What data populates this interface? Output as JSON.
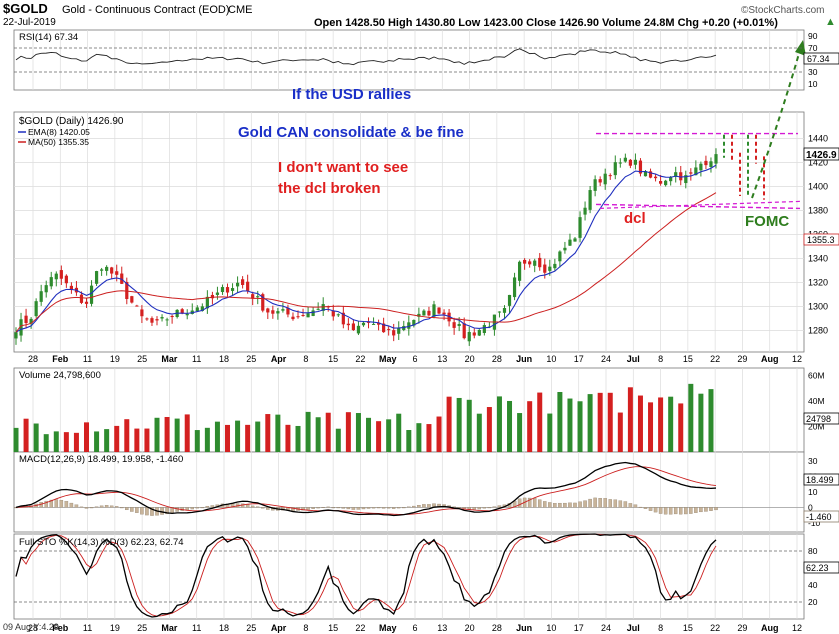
{
  "header": {
    "symbol": "$GOLD",
    "name": "Gold - Continuous Contract (EOD)",
    "exchange": "CME",
    "date": "22-Jul-2019",
    "logo": "©StockCharts.com",
    "quote": "Open 1428.50  High 1430.80  Low 1423.00  Close 1426.90  Volume 24.8M  Chg +0.20 (+0.01%)",
    "quote_arrow": "▲"
  },
  "annotations": {
    "usd": "If the USD rallies",
    "consolidate": "Gold CAN consolidate & be fine",
    "dont_want_1": "I don't want to see",
    "dont_want_2": "the dcl broken",
    "dcl": "dcl",
    "fomc": "FOMC"
  },
  "colors": {
    "up": "#2e8b2e",
    "down": "#d42020",
    "ema": "#1f2fbf",
    "ma": "#cc2020",
    "annot_blue": "#1a2fc8",
    "annot_red": "#e01f1f",
    "annot_green": "#2e7d1e",
    "magenta": "#d41ad4"
  },
  "chart_data": [
    {
      "type": "line",
      "panel": "RSI",
      "legend": "RSI(14) 67.34",
      "last_value_label": "67.34",
      "y_ticks": [
        "90",
        "70",
        "50",
        "30",
        "10"
      ],
      "ylim": [
        0,
        100
      ],
      "guides": [
        70,
        30
      ]
    },
    {
      "type": "candlestick",
      "panel": "Price",
      "legend_title": "$GOLD (Daily) 1426.90",
      "legend_ema": "EMA(8) 1420.05",
      "legend_ma": "MA(50) 1355.35",
      "last_value_label": "1426.9",
      "ma_value_label": "1355.3",
      "y_ticks": [
        "1440",
        "1420",
        "1400",
        "1380",
        "1360",
        "1340",
        "1320",
        "1300",
        "1280"
      ],
      "ylim": [
        1262,
        1462
      ],
      "resistance": 1444,
      "support": 1385,
      "x_ticks": [
        "28",
        "Feb",
        "11",
        "19",
        "25",
        "Mar",
        "11",
        "18",
        "25",
        "Apr",
        "8",
        "15",
        "22",
        "May",
        "6",
        "13",
        "20",
        "28",
        "Jun",
        "10",
        "17",
        "24",
        "Jul",
        "8",
        "15",
        "22",
        "29",
        "Aug",
        "12"
      ],
      "x_tick_bold": [
        "Feb",
        "Mar",
        "Apr",
        "May",
        "Jun",
        "Jul",
        "Aug"
      ],
      "anchors_close": [
        1283,
        1290,
        1318,
        1326,
        1312,
        1302,
        1336,
        1326,
        1308,
        1290,
        1284,
        1292,
        1296,
        1300,
        1306,
        1315,
        1320,
        1308,
        1296,
        1294,
        1292,
        1296,
        1302,
        1290,
        1278,
        1288,
        1280,
        1278,
        1288,
        1292,
        1300,
        1290,
        1276,
        1280,
        1288,
        1296,
        1336,
        1341,
        1330,
        1346,
        1360,
        1398,
        1410,
        1418,
        1422,
        1408,
        1404,
        1412,
        1406,
        1420,
        1426.9
      ],
      "projection_close": [
        1440,
        1425,
        1395,
        1440,
        1422,
        1392
      ]
    },
    {
      "type": "bar",
      "panel": "Volume",
      "legend": "Volume 24,798,600",
      "last_value_label": "24798",
      "y_ticks": [
        "60M",
        "40M",
        "20M"
      ],
      "ylim": [
        0,
        66
      ]
    },
    {
      "type": "line",
      "panel": "MACD",
      "legend": "MACD(12,26,9) 18.499, 19.958, -1.460",
      "macd_value_label": "18.499",
      "hist_value_label": "-1.460",
      "y_ticks": [
        "30",
        "20",
        "10",
        "0",
        "-10"
      ],
      "ylim": [
        -16,
        36
      ]
    },
    {
      "type": "line",
      "panel": "Full STO",
      "legend": "Full STO %K(14,3) %D(3) 62.23, 62.74",
      "last_value_label": "62.23",
      "y_ticks": [
        "80",
        "60",
        "40",
        "20"
      ],
      "ylim": [
        0,
        100
      ],
      "guides": [
        80,
        20
      ]
    }
  ],
  "footer": "09 Aug Y:4.29"
}
